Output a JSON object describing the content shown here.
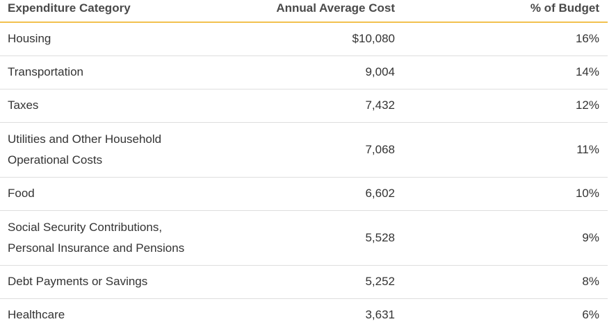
{
  "table": {
    "headers": {
      "category": "Expenditure Category",
      "cost": "Annual Average Cost",
      "percent": "% of Budget"
    },
    "rows": [
      {
        "category_lines": [
          "Housing"
        ],
        "cost": "$10,080",
        "percent": "16%"
      },
      {
        "category_lines": [
          "Transportation"
        ],
        "cost": "9,004",
        "percent": "14%"
      },
      {
        "category_lines": [
          "Taxes"
        ],
        "cost": "7,432",
        "percent": "12%"
      },
      {
        "category_lines": [
          "Utilities and Other Household",
          "Operational Costs"
        ],
        "cost": "7,068",
        "percent": "11%"
      },
      {
        "category_lines": [
          "Food"
        ],
        "cost": "6,602",
        "percent": "10%"
      },
      {
        "category_lines": [
          "Social Security Contributions,",
          "Personal Insurance and Pensions"
        ],
        "cost": "5,528",
        "percent": "9%"
      },
      {
        "category_lines": [
          "Debt Payments or Savings"
        ],
        "cost": "5,252",
        "percent": "8%"
      },
      {
        "category_lines": [
          "Healthcare"
        ],
        "cost": "3,631",
        "percent": "6%"
      }
    ]
  },
  "colors": {
    "header_rule": "#f2c14e",
    "row_divider": "#dedede",
    "text": "#333333"
  }
}
